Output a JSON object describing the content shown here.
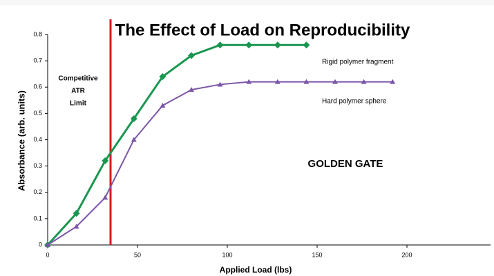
{
  "chart_data": {
    "type": "line",
    "title": "The Effect of Load on Reproducibility",
    "x_label": "Applied Load (lbs)",
    "y_label": "Absorbance (arb. units)",
    "xlim": [
      0,
      250
    ],
    "ylim": [
      0,
      0.8
    ],
    "xticks": [
      0,
      50,
      100,
      150,
      200
    ],
    "yticks": [
      0,
      0.1,
      0.2,
      0.3,
      0.4,
      0.5,
      0.6,
      0.7,
      0.8
    ],
    "grid": false,
    "series": [
      {
        "name": "Rigid polymer fragment",
        "color": "#1a9650",
        "marker": "diamond",
        "x": [
          0,
          16,
          32,
          48,
          64,
          80,
          96,
          112,
          128,
          144
        ],
        "values": [
          0,
          0.12,
          0.32,
          0.48,
          0.64,
          0.72,
          0.76,
          0.76,
          0.76,
          0.76
        ]
      },
      {
        "name": "Hard polymer sphere",
        "color": "#7b55a8",
        "marker": "triangle",
        "x": [
          0,
          16,
          32,
          48,
          64,
          80,
          96,
          112,
          128,
          144,
          160,
          176,
          192
        ],
        "values": [
          0,
          0.07,
          0.18,
          0.4,
          0.53,
          0.59,
          0.61,
          0.62,
          0.62,
          0.62,
          0.62,
          0.62,
          0.62
        ]
      }
    ],
    "limit_line": {
      "x": 35,
      "color": "#d7191c",
      "label": [
        "Competitive",
        "ATR",
        "Limit"
      ]
    },
    "annotation": "GOLDEN GATE"
  }
}
